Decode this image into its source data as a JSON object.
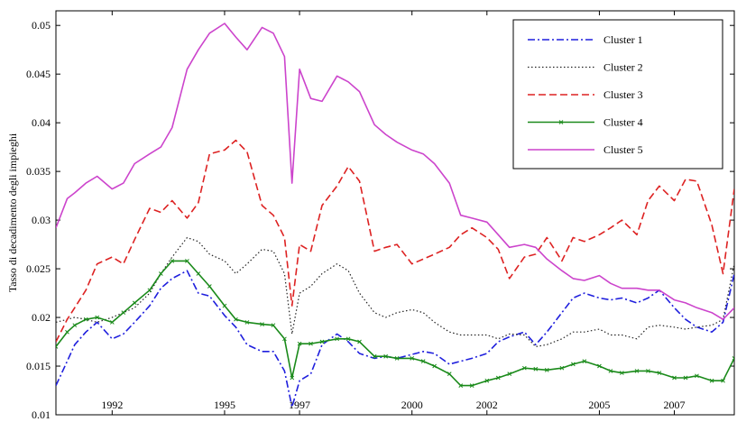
{
  "chart_data": {
    "type": "line",
    "title": "",
    "xlabel": "",
    "ylabel": "Tasso di decadimento degli impieghi",
    "xlim": [
      1990.5,
      2008.6
    ],
    "ylim": [
      0.01,
      0.0515
    ],
    "x_ticks": [
      1992,
      1995,
      1997,
      2000,
      2002,
      2005,
      2007
    ],
    "x_tick_labels": [
      "1992",
      "1995",
      "1997",
      "2000",
      "2002",
      "2005",
      "2007"
    ],
    "y_ticks": [
      0.01,
      0.015,
      0.02,
      0.025,
      0.03,
      0.035,
      0.04,
      0.045,
      0.05
    ],
    "y_tick_labels": [
      "0.01",
      "0.015",
      "0.02",
      "0.025",
      "0.03",
      "0.035",
      "0.04",
      "0.045",
      "0.05"
    ],
    "grid": false,
    "legend_position": "top-right",
    "series": [
      {
        "name": "Cluster 1",
        "color": "#1f1fdd",
        "style": "dashdot",
        "x": [
          1990.5,
          1990.8,
          1991.0,
          1991.3,
          1991.6,
          1992.0,
          1992.3,
          1992.6,
          1993.0,
          1993.3,
          1993.6,
          1994.0,
          1994.3,
          1994.6,
          1995.0,
          1995.3,
          1995.6,
          1996.0,
          1996.3,
          1996.6,
          1996.8,
          1997.0,
          1997.3,
          1997.6,
          1998.0,
          1998.3,
          1998.6,
          1999.0,
          1999.3,
          1999.6,
          2000.0,
          2000.3,
          2000.6,
          2001.0,
          2001.3,
          2001.6,
          2002.0,
          2002.3,
          2002.6,
          2003.0,
          2003.3,
          2003.6,
          2004.0,
          2004.3,
          2004.6,
          2005.0,
          2005.3,
          2005.6,
          2006.0,
          2006.3,
          2006.6,
          2007.0,
          2007.3,
          2007.6,
          2008.0,
          2008.3,
          2008.6
        ],
        "values": [
          0.013,
          0.0155,
          0.0172,
          0.0185,
          0.0195,
          0.0178,
          0.0183,
          0.0195,
          0.0212,
          0.023,
          0.024,
          0.0248,
          0.0225,
          0.0222,
          0.0202,
          0.019,
          0.0172,
          0.0165,
          0.0165,
          0.0145,
          0.0108,
          0.0135,
          0.0142,
          0.0172,
          0.0183,
          0.0175,
          0.0163,
          0.0158,
          0.016,
          0.0158,
          0.0162,
          0.0165,
          0.0163,
          0.0152,
          0.0155,
          0.0158,
          0.0163,
          0.0175,
          0.018,
          0.0185,
          0.0172,
          0.0185,
          0.0205,
          0.022,
          0.0225,
          0.022,
          0.0218,
          0.022,
          0.0215,
          0.022,
          0.0228,
          0.021,
          0.0198,
          0.019,
          0.0185,
          0.0195,
          0.0245
        ]
      },
      {
        "name": "Cluster 2",
        "color": "#222222",
        "style": "dotted",
        "x": [
          1990.5,
          1990.8,
          1991.0,
          1991.3,
          1991.6,
          1992.0,
          1992.3,
          1992.6,
          1993.0,
          1993.3,
          1993.6,
          1994.0,
          1994.3,
          1994.6,
          1995.0,
          1995.3,
          1995.6,
          1996.0,
          1996.3,
          1996.6,
          1996.8,
          1997.0,
          1997.3,
          1997.6,
          1998.0,
          1998.3,
          1998.6,
          1999.0,
          1999.3,
          1999.6,
          2000.0,
          2000.3,
          2000.6,
          2001.0,
          2001.3,
          2001.6,
          2002.0,
          2002.3,
          2002.6,
          2003.0,
          2003.3,
          2003.6,
          2004.0,
          2004.3,
          2004.6,
          2005.0,
          2005.3,
          2005.6,
          2006.0,
          2006.3,
          2006.6,
          2007.0,
          2007.3,
          2007.6,
          2008.0,
          2008.3,
          2008.6
        ],
        "values": [
          0.0195,
          0.0198,
          0.02,
          0.0198,
          0.0195,
          0.02,
          0.0205,
          0.021,
          0.0225,
          0.0245,
          0.0262,
          0.0282,
          0.0278,
          0.0265,
          0.0258,
          0.0245,
          0.0255,
          0.027,
          0.0268,
          0.0245,
          0.0183,
          0.0225,
          0.0232,
          0.0245,
          0.0255,
          0.0248,
          0.0225,
          0.0205,
          0.02,
          0.0205,
          0.0208,
          0.0205,
          0.0195,
          0.0185,
          0.0182,
          0.0182,
          0.0182,
          0.0178,
          0.0183,
          0.0182,
          0.017,
          0.0172,
          0.0178,
          0.0185,
          0.0185,
          0.0188,
          0.0182,
          0.0182,
          0.0178,
          0.019,
          0.0192,
          0.019,
          0.0188,
          0.019,
          0.0192,
          0.0198,
          0.0255
        ]
      },
      {
        "name": "Cluster 3",
        "color": "#dd2222",
        "style": "dashed",
        "x": [
          1990.5,
          1990.8,
          1991.0,
          1991.3,
          1991.6,
          1992.0,
          1992.3,
          1992.6,
          1993.0,
          1993.3,
          1993.6,
          1994.0,
          1994.3,
          1994.6,
          1995.0,
          1995.3,
          1995.6,
          1996.0,
          1996.3,
          1996.6,
          1996.8,
          1997.0,
          1997.3,
          1997.6,
          1998.0,
          1998.3,
          1998.6,
          1999.0,
          1999.3,
          1999.6,
          2000.0,
          2000.3,
          2000.6,
          2001.0,
          2001.3,
          2001.6,
          2002.0,
          2002.3,
          2002.6,
          2003.0,
          2003.3,
          2003.6,
          2004.0,
          2004.3,
          2004.6,
          2005.0,
          2005.3,
          2005.6,
          2006.0,
          2006.3,
          2006.6,
          2007.0,
          2007.3,
          2007.6,
          2008.0,
          2008.3,
          2008.6
        ],
        "values": [
          0.0175,
          0.0198,
          0.021,
          0.0228,
          0.0255,
          0.0262,
          0.0255,
          0.028,
          0.0312,
          0.0308,
          0.032,
          0.0302,
          0.0318,
          0.0368,
          0.0372,
          0.0382,
          0.037,
          0.0315,
          0.0305,
          0.0282,
          0.0212,
          0.0275,
          0.0268,
          0.0315,
          0.0335,
          0.0355,
          0.034,
          0.0268,
          0.0272,
          0.0275,
          0.0255,
          0.026,
          0.0265,
          0.0272,
          0.0285,
          0.0292,
          0.0282,
          0.027,
          0.024,
          0.0262,
          0.0265,
          0.0282,
          0.0258,
          0.0282,
          0.0278,
          0.0285,
          0.0292,
          0.03,
          0.0285,
          0.032,
          0.0335,
          0.032,
          0.0342,
          0.034,
          0.0295,
          0.0245,
          0.0332
        ]
      },
      {
        "name": "Cluster 4",
        "color": "#1a8a1a",
        "style": "solid-marker-x",
        "x": [
          1990.5,
          1990.8,
          1991.0,
          1991.3,
          1991.6,
          1992.0,
          1992.3,
          1992.6,
          1993.0,
          1993.3,
          1993.6,
          1994.0,
          1994.3,
          1994.6,
          1995.0,
          1995.3,
          1995.6,
          1996.0,
          1996.3,
          1996.6,
          1996.8,
          1997.0,
          1997.3,
          1997.6,
          1998.0,
          1998.3,
          1998.6,
          1999.0,
          1999.3,
          1999.6,
          2000.0,
          2000.3,
          2000.6,
          2001.0,
          2001.3,
          2001.6,
          2002.0,
          2002.3,
          2002.6,
          2003.0,
          2003.3,
          2003.6,
          2004.0,
          2004.3,
          2004.6,
          2005.0,
          2005.3,
          2005.6,
          2006.0,
          2006.3,
          2006.6,
          2007.0,
          2007.3,
          2007.6,
          2008.0,
          2008.3,
          2008.6
        ],
        "values": [
          0.017,
          0.0185,
          0.0192,
          0.0198,
          0.02,
          0.0195,
          0.0205,
          0.0215,
          0.0228,
          0.0245,
          0.0258,
          0.0258,
          0.0245,
          0.0232,
          0.0212,
          0.0198,
          0.0195,
          0.0193,
          0.0192,
          0.0178,
          0.0138,
          0.0173,
          0.0173,
          0.0175,
          0.0178,
          0.0178,
          0.0175,
          0.016,
          0.016,
          0.0158,
          0.0158,
          0.0155,
          0.015,
          0.0142,
          0.013,
          0.013,
          0.0135,
          0.0138,
          0.0142,
          0.0148,
          0.0147,
          0.0146,
          0.0148,
          0.0152,
          0.0155,
          0.015,
          0.0145,
          0.0143,
          0.0145,
          0.0145,
          0.0143,
          0.0138,
          0.0138,
          0.014,
          0.0135,
          0.0135,
          0.0158
        ]
      },
      {
        "name": "Cluster 5",
        "color": "#cc44cc",
        "style": "solid",
        "x": [
          1990.5,
          1990.8,
          1991.0,
          1991.3,
          1991.6,
          1992.0,
          1992.3,
          1992.6,
          1993.0,
          1993.3,
          1993.6,
          1994.0,
          1994.3,
          1994.6,
          1995.0,
          1995.3,
          1995.6,
          1996.0,
          1996.3,
          1996.6,
          1996.8,
          1997.0,
          1997.3,
          1997.6,
          1998.0,
          1998.3,
          1998.6,
          1999.0,
          1999.3,
          1999.6,
          2000.0,
          2000.3,
          2000.6,
          2001.0,
          2001.3,
          2001.6,
          2002.0,
          2002.3,
          2002.6,
          2003.0,
          2003.3,
          2003.6,
          2004.0,
          2004.3,
          2004.6,
          2005.0,
          2005.3,
          2005.6,
          2006.0,
          2006.3,
          2006.6,
          2007.0,
          2007.3,
          2007.6,
          2008.0,
          2008.3,
          2008.6
        ],
        "values": [
          0.0292,
          0.0322,
          0.0328,
          0.0338,
          0.0345,
          0.0332,
          0.0338,
          0.0358,
          0.0368,
          0.0375,
          0.0395,
          0.0455,
          0.0475,
          0.0492,
          0.0502,
          0.0488,
          0.0475,
          0.0498,
          0.0492,
          0.0468,
          0.0338,
          0.0455,
          0.0425,
          0.0422,
          0.0448,
          0.0442,
          0.0432,
          0.0398,
          0.0388,
          0.038,
          0.0372,
          0.0368,
          0.0358,
          0.0338,
          0.0305,
          0.0302,
          0.0298,
          0.0285,
          0.0272,
          0.0275,
          0.0272,
          0.026,
          0.0248,
          0.024,
          0.0238,
          0.0243,
          0.0235,
          0.023,
          0.023,
          0.0228,
          0.0228,
          0.0218,
          0.0215,
          0.021,
          0.0205,
          0.0198,
          0.021
        ]
      }
    ]
  }
}
